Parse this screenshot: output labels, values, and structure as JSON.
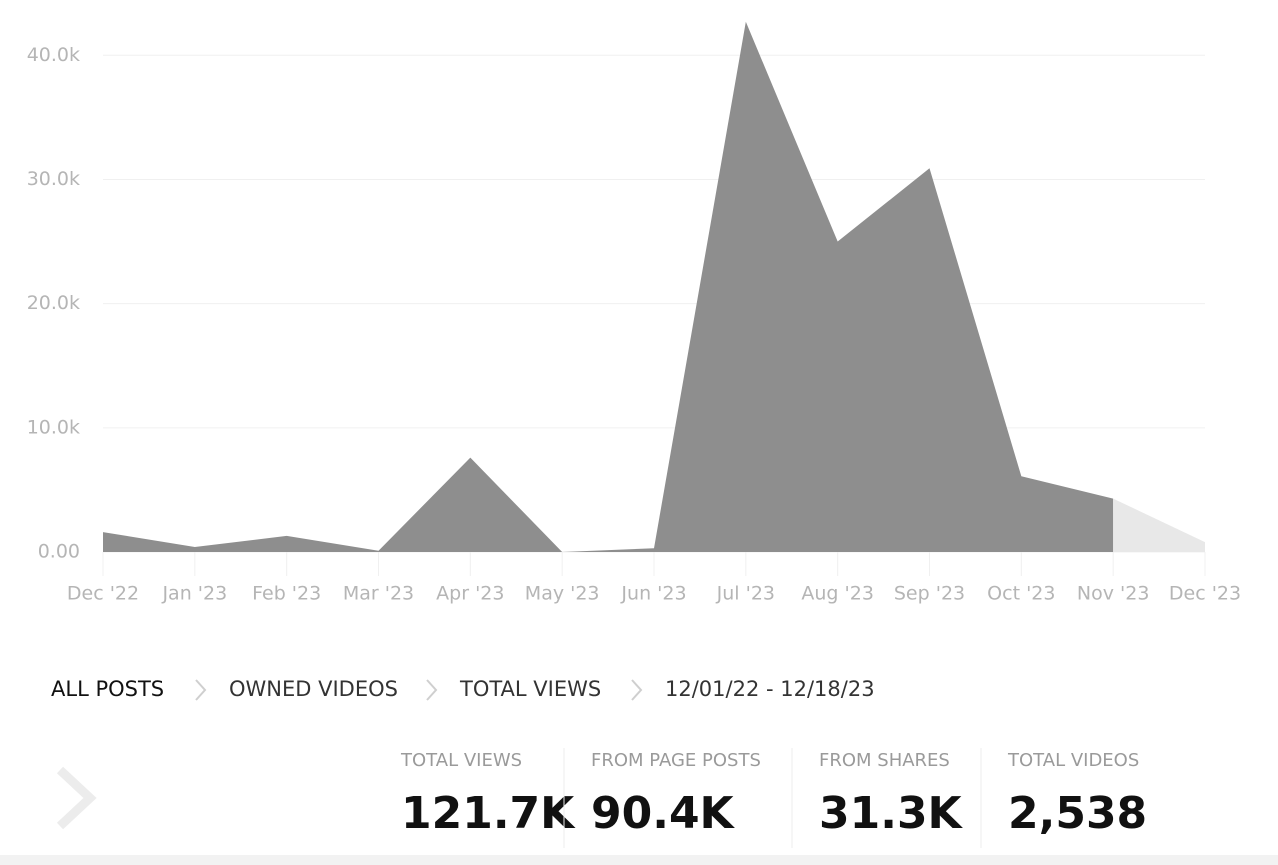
{
  "chart_data": {
    "type": "area",
    "categories": [
      "Dec '22",
      "Jan '23",
      "Feb '23",
      "Mar '23",
      "Apr '23",
      "May '23",
      "Jun '23",
      "Jul '23",
      "Aug '23",
      "Sep '23",
      "Oct '23",
      "Nov '23",
      "Dec '23"
    ],
    "values": [
      1600,
      400,
      1300,
      100,
      7600,
      0,
      300,
      42700,
      25000,
      30900,
      6100,
      4300,
      800
    ],
    "color": "#8e8e8e",
    "partial_color": "#e8e8e8",
    "ylim": [
      0,
      43000
    ],
    "yticks": [
      {
        "value": 0,
        "label": "0.00"
      },
      {
        "value": 10000,
        "label": "10.0k"
      },
      {
        "value": 20000,
        "label": "20.0k"
      },
      {
        "value": 30000,
        "label": "30.0k"
      },
      {
        "value": 40000,
        "label": "40.0k"
      }
    ],
    "grid": true
  },
  "breadcrumb": [
    "ALL POSTS",
    "OWNED VIDEOS",
    "TOTAL VIEWS",
    "12/01/22 - 12/18/23"
  ],
  "stats": [
    {
      "label": "TOTAL VIEWS",
      "value": "121.7K"
    },
    {
      "label": "FROM PAGE POSTS",
      "value": "90.4K"
    },
    {
      "label": "FROM SHARES",
      "value": "31.3K"
    },
    {
      "label": "TOTAL VIDEOS",
      "value": "2,538"
    }
  ]
}
